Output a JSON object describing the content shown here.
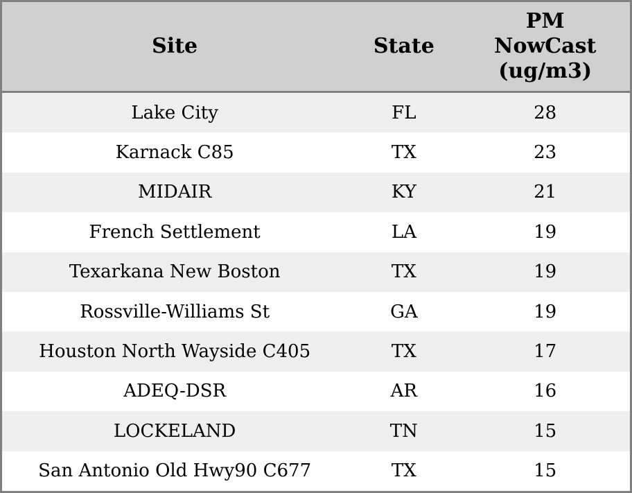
{
  "table": {
    "columns": [
      {
        "label": "Site"
      },
      {
        "label": "State"
      },
      {
        "label": "PM\nNowCast\n(ug/m3)"
      }
    ],
    "rows": [
      {
        "site": "Lake City",
        "state": "FL",
        "value": "28"
      },
      {
        "site": "Karnack C85",
        "state": "TX",
        "value": "23"
      },
      {
        "site": "MIDAIR",
        "state": "KY",
        "value": "21"
      },
      {
        "site": "French Settlement",
        "state": "LA",
        "value": "19"
      },
      {
        "site": "Texarkana New Boston",
        "state": "TX",
        "value": "19"
      },
      {
        "site": "Rossville-Williams St",
        "state": "GA",
        "value": "19"
      },
      {
        "site": "Houston North Wayside C405",
        "state": "TX",
        "value": "17"
      },
      {
        "site": "ADEQ-DSR",
        "state": "AR",
        "value": "16"
      },
      {
        "site": "LOCKELAND",
        "state": "TN",
        "value": "15"
      },
      {
        "site": "San Antonio Old Hwy90 C677",
        "state": "TX",
        "value": "15"
      }
    ]
  },
  "colors": {
    "border": "#808080",
    "header_bg": "#d0d0d0",
    "row_alt_bg": "#efefef",
    "row_bg": "#ffffff",
    "text": "#000000"
  },
  "chart_data": {
    "type": "table",
    "title": "",
    "columns": [
      "Site",
      "State",
      "PM NowCast (ug/m3)"
    ],
    "rows": [
      [
        "Lake City",
        "FL",
        28
      ],
      [
        "Karnack C85",
        "TX",
        23
      ],
      [
        "MIDAIR",
        "KY",
        21
      ],
      [
        "French Settlement",
        "LA",
        19
      ],
      [
        "Texarkana New Boston",
        "TX",
        19
      ],
      [
        "Rossville-Williams St",
        "GA",
        19
      ],
      [
        "Houston North Wayside C405",
        "TX",
        17
      ],
      [
        "ADEQ-DSR",
        "AR",
        16
      ],
      [
        "LOCKELAND",
        "TN",
        15
      ],
      [
        "San Antonio Old Hwy90 C677",
        "TX",
        15
      ]
    ],
    "layout_hints": {
      "header_background": "#d0d0d0",
      "alternating_row_colors": [
        "#efefef",
        "#ffffff"
      ],
      "outer_border": "#808080",
      "text_align": "center"
    }
  }
}
